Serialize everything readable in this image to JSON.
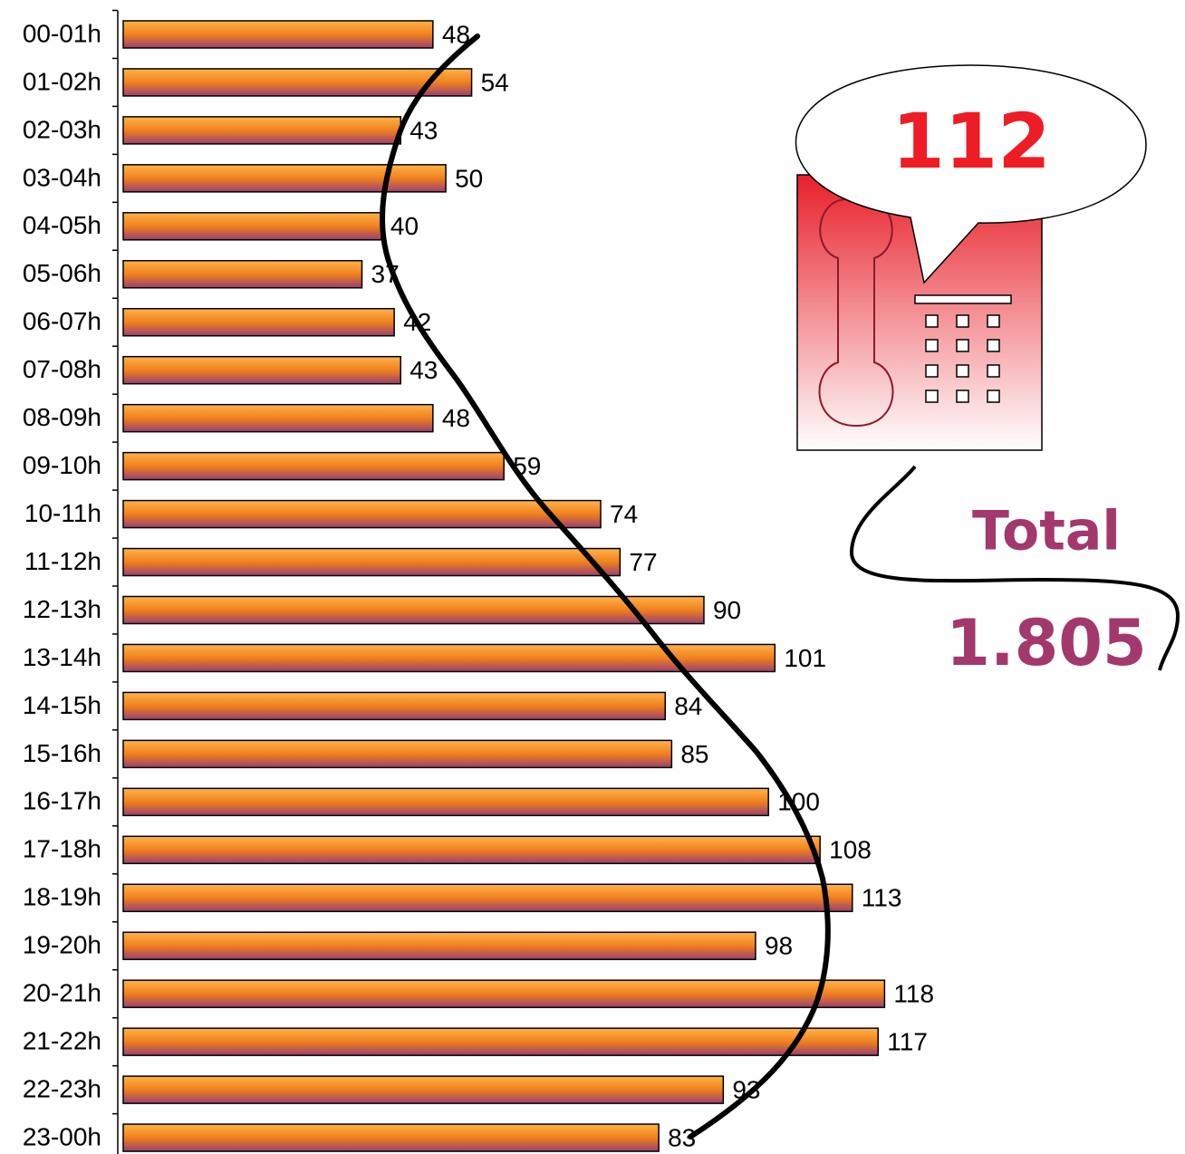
{
  "chart_data": {
    "type": "bar",
    "orientation": "horizontal",
    "categories": [
      "00-01h",
      "01-02h",
      "02-03h",
      "03-04h",
      "04-05h",
      "05-06h",
      "06-07h",
      "07-08h",
      "08-09h",
      "09-10h",
      "10-11h",
      "11-12h",
      "12-13h",
      "13-14h",
      "14-15h",
      "15-16h",
      "16-17h",
      "17-18h",
      "18-19h",
      "19-20h",
      "20-21h",
      "21-22h",
      "22-23h",
      "23-00h"
    ],
    "values": [
      48,
      54,
      43,
      50,
      40,
      37,
      42,
      43,
      48,
      59,
      74,
      77,
      90,
      101,
      84,
      85,
      100,
      108,
      113,
      98,
      118,
      117,
      93,
      83
    ],
    "xlim": [
      0,
      164
    ],
    "colors": [
      "#ffb347",
      "#f0801e",
      "#9a3f72"
    ],
    "annotations": [
      "112",
      "Total",
      "1.805"
    ]
  }
}
